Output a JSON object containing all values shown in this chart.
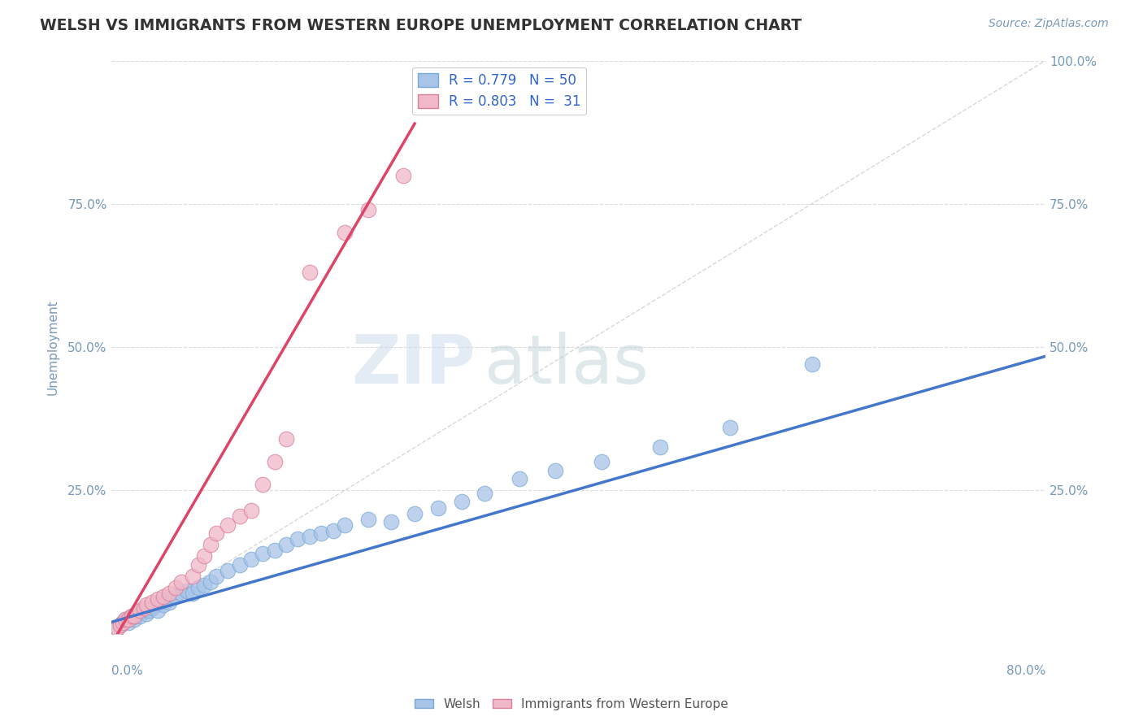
{
  "title": "WELSH VS IMMIGRANTS FROM WESTERN EUROPE UNEMPLOYMENT CORRELATION CHART",
  "source_text": "Source: ZipAtlas.com",
  "ylabel": "Unemployment",
  "y_ticks": [
    0.0,
    0.25,
    0.5,
    0.75,
    1.0
  ],
  "y_tick_labels_left": [
    "",
    "25.0%",
    "50.0%",
    "75.0%",
    ""
  ],
  "y_tick_labels_right": [
    "",
    "25.0%",
    "50.0%",
    "75.0%",
    "100.0%"
  ],
  "x_ticks": [
    0.0,
    0.1,
    0.2,
    0.3,
    0.4,
    0.5,
    0.6,
    0.7,
    0.8
  ],
  "welsh_color": "#a8c4e8",
  "welsh_edge_color": "#7aaad4",
  "immigrants_color": "#f0b8c8",
  "immigrants_edge_color": "#d88098",
  "welsh_line_color": "#4477cc",
  "immigrants_line_color": "#dd4466",
  "ref_line_color": "#cccccc",
  "legend_R_welsh": "R = 0.779",
  "legend_N_welsh": "N = 50",
  "legend_R_immigrants": "R = 0.803",
  "legend_N_immigrants": "N =  31",
  "background_color": "#ffffff",
  "title_color": "#333333",
  "axis_label_color": "#7799bb",
  "welsh_scatter_x": [
    0.005,
    0.008,
    0.01,
    0.012,
    0.015,
    0.018,
    0.02,
    0.022,
    0.025,
    0.028,
    0.03,
    0.032,
    0.035,
    0.038,
    0.04,
    0.042,
    0.045,
    0.048,
    0.05,
    0.055,
    0.06,
    0.065,
    0.07,
    0.075,
    0.08,
    0.085,
    0.09,
    0.1,
    0.11,
    0.12,
    0.13,
    0.14,
    0.15,
    0.16,
    0.17,
    0.18,
    0.19,
    0.2,
    0.22,
    0.24,
    0.26,
    0.28,
    0.3,
    0.32,
    0.35,
    0.38,
    0.42,
    0.47,
    0.53,
    0.6
  ],
  "welsh_scatter_y": [
    0.01,
    0.015,
    0.02,
    0.025,
    0.02,
    0.03,
    0.025,
    0.035,
    0.03,
    0.04,
    0.035,
    0.04,
    0.045,
    0.05,
    0.04,
    0.055,
    0.05,
    0.06,
    0.055,
    0.065,
    0.07,
    0.075,
    0.07,
    0.08,
    0.085,
    0.09,
    0.1,
    0.11,
    0.12,
    0.13,
    0.14,
    0.145,
    0.155,
    0.165,
    0.17,
    0.175,
    0.18,
    0.19,
    0.2,
    0.195,
    0.21,
    0.22,
    0.23,
    0.245,
    0.27,
    0.285,
    0.3,
    0.325,
    0.36,
    0.47
  ],
  "immigrants_scatter_x": [
    0.005,
    0.008,
    0.01,
    0.012,
    0.015,
    0.018,
    0.02,
    0.025,
    0.028,
    0.03,
    0.035,
    0.04,
    0.045,
    0.05,
    0.055,
    0.06,
    0.07,
    0.075,
    0.08,
    0.085,
    0.09,
    0.1,
    0.11,
    0.12,
    0.13,
    0.14,
    0.15,
    0.17,
    0.2,
    0.22,
    0.25
  ],
  "immigrants_scatter_y": [
    0.01,
    0.015,
    0.02,
    0.025,
    0.025,
    0.03,
    0.03,
    0.04,
    0.045,
    0.05,
    0.055,
    0.06,
    0.065,
    0.07,
    0.08,
    0.09,
    0.1,
    0.12,
    0.135,
    0.155,
    0.175,
    0.19,
    0.205,
    0.215,
    0.26,
    0.3,
    0.34,
    0.63,
    0.7,
    0.74,
    0.8
  ]
}
